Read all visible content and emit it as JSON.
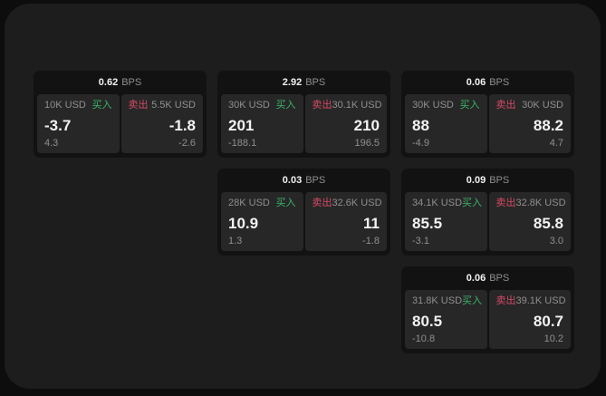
{
  "page": {
    "background": "#0d0d0d",
    "window_background": "#1d1d1d"
  },
  "colors": {
    "buy_green": "#3cb46a",
    "sell_red": "#d64a64",
    "card_background": "#121212",
    "tile_background": "#272727",
    "text_primary": "#f2f2f2",
    "text_muted": "#8f8f8f"
  },
  "labels": {
    "bps_unit": "BPS",
    "buy": "买入",
    "sell": "卖出"
  },
  "cards": [
    {
      "grid": {
        "row": 1,
        "col": 1
      },
      "bps": "0.62",
      "buy": {
        "size": "10K USD",
        "value": "-3.7",
        "delta": "4.3"
      },
      "sell": {
        "size": "5.5K USD",
        "value": "-1.8",
        "delta": "-2.6"
      }
    },
    {
      "grid": {
        "row": 1,
        "col": 2
      },
      "bps": "2.92",
      "buy": {
        "size": "30K USD",
        "value": "201",
        "delta": "-188.1"
      },
      "sell": {
        "size": "30.1K USD",
        "value": "210",
        "delta": "196.5"
      }
    },
    {
      "grid": {
        "row": 1,
        "col": 3
      },
      "bps": "0.06",
      "buy": {
        "size": "30K USD",
        "value": "88",
        "delta": "-4.9"
      },
      "sell": {
        "size": "30K USD",
        "value": "88.2",
        "delta": "4.7"
      }
    },
    {
      "grid": {
        "row": 2,
        "col": 2
      },
      "bps": "0.03",
      "buy": {
        "size": "28K USD",
        "value": "10.9",
        "delta": "1.3"
      },
      "sell": {
        "size": "32.6K USD",
        "value": "11",
        "delta": "-1.8"
      }
    },
    {
      "grid": {
        "row": 2,
        "col": 3
      },
      "bps": "0.09",
      "buy": {
        "size": "34.1K USD",
        "value": "85.5",
        "delta": "-3.1"
      },
      "sell": {
        "size": "32.8K USD",
        "value": "85.8",
        "delta": "3.0"
      }
    },
    {
      "grid": {
        "row": 3,
        "col": 3
      },
      "bps": "0.06",
      "buy": {
        "size": "31.8K USD",
        "value": "80.5",
        "delta": "-10.8"
      },
      "sell": {
        "size": "39.1K USD",
        "value": "80.7",
        "delta": "10.2"
      }
    }
  ]
}
